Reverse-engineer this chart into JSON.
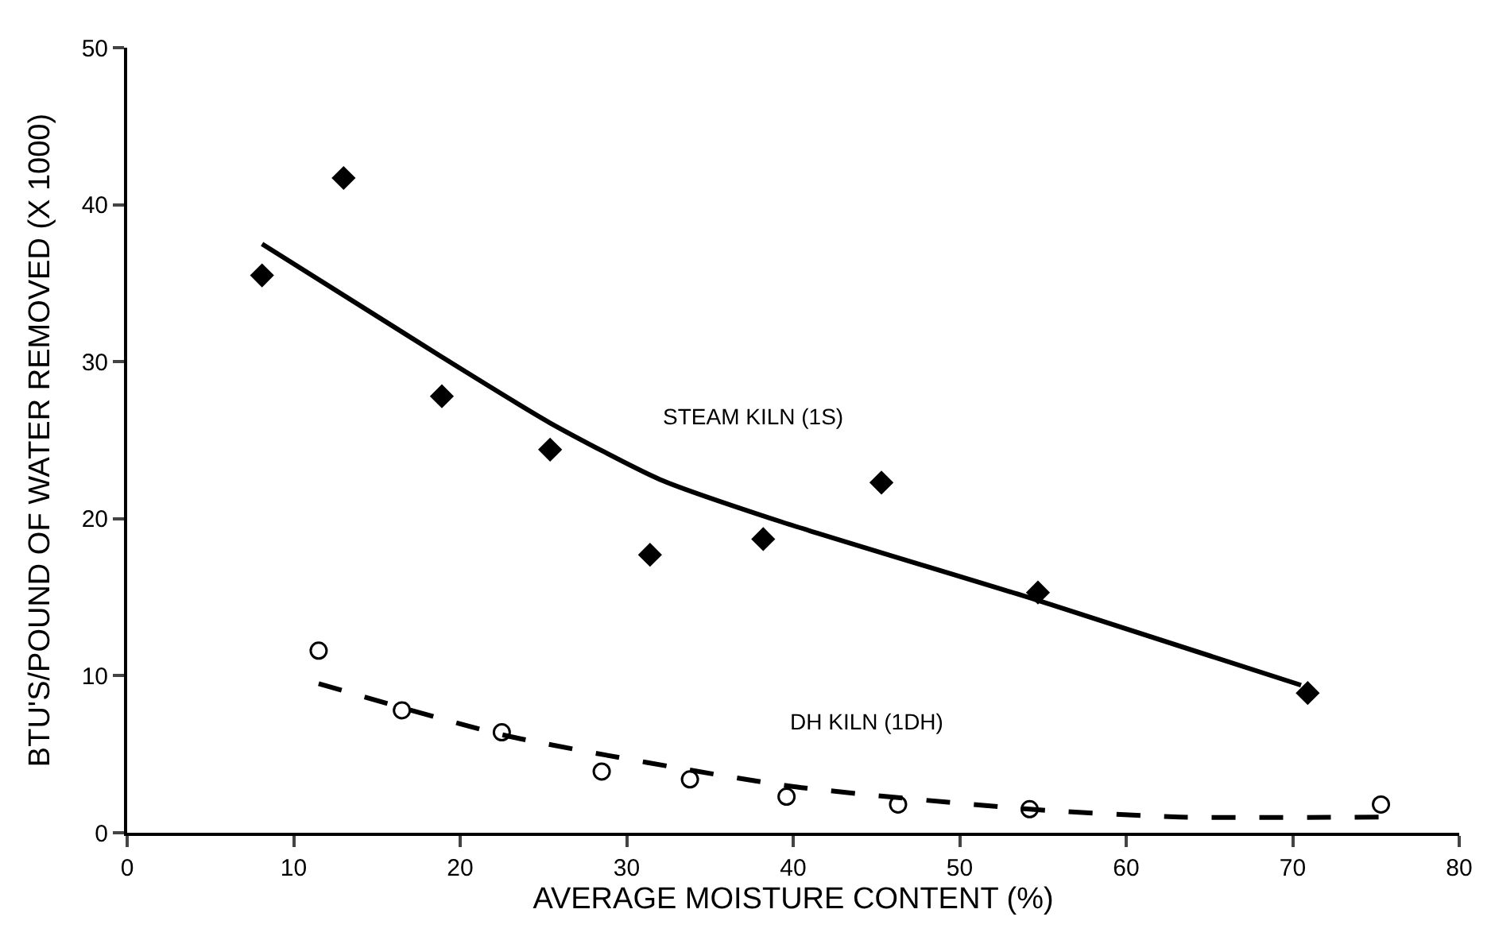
{
  "chart_data": {
    "type": "scatter",
    "xlabel": "AVERAGE MOISTURE CONTENT (%)",
    "ylabel": "BTU'S/POUND OF WATER REMOVED (X 1000)",
    "xlim": [
      0,
      80
    ],
    "xticks": [
      0,
      10,
      20,
      30,
      40,
      50,
      60,
      70,
      80
    ],
    "ylim": [
      0,
      50
    ],
    "yticks": [
      0,
      10,
      20,
      30,
      40,
      50
    ],
    "grid": false,
    "legend": false,
    "series": [
      {
        "color": "#000000",
        "marker": "diamond",
        "x": [
          8.1,
          13.0,
          18.9,
          25.4,
          31.4,
          38.2,
          45.3,
          54.7,
          70.9
        ],
        "values": [
          35.5,
          41.7,
          27.8,
          24.4,
          17.7,
          18.7,
          22.3,
          15.3,
          8.9
        ]
      },
      {
        "type": "line",
        "name": "STEAM KILN (1S)",
        "color": "#000000",
        "line_style": "solid",
        "x": [
          8.1,
          18.9,
          25.4,
          32,
          39.3,
          54.7,
          70.5
        ],
        "values": [
          37.5,
          30.3,
          26.1,
          22.5,
          19.8,
          14.8,
          9.4
        ]
      },
      {
        "color": "#000000",
        "marker": "circle",
        "x": [
          11.5,
          16.5,
          22.5,
          28.5,
          33.8,
          39.6,
          46.3,
          54.2,
          75.3
        ],
        "values": [
          11.6,
          7.8,
          6.4,
          3.9,
          3.4,
          2.3,
          1.8,
          1.5,
          1.8
        ]
      },
      {
        "type": "line",
        "name": "DH KILN (1DH)",
        "color": "#000000",
        "line_style": "dashed",
        "x": [
          11.5,
          22.7,
          39.6,
          54.2,
          63.2,
          75.3
        ],
        "values": [
          9.5,
          6.2,
          3.0,
          1.5,
          1.0,
          1.0
        ]
      }
    ]
  }
}
